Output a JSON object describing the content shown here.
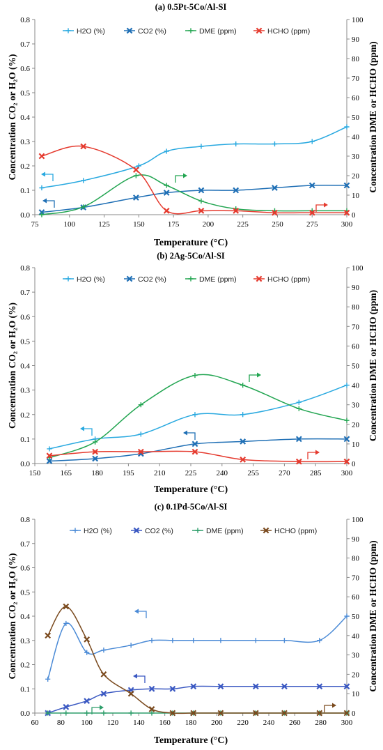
{
  "chart_data": [
    {
      "type": "line",
      "title": "(a) 0.5Pt-5Co/Al-SI",
      "xlabel": "Temperature (°C)",
      "ylabel_left": "Concentration CO₂ or H₂O (%)",
      "ylabel_right": "Concentration DME or HCHO (ppm)",
      "xlim": [
        75,
        300
      ],
      "xticks": [
        75,
        100,
        125,
        150,
        175,
        200,
        225,
        250,
        275,
        300
      ],
      "ylim_left": [
        0,
        0.8
      ],
      "yticks_left": [
        "0.0",
        "0.1",
        "0.2",
        "0.3",
        "0.4",
        "0.5",
        "0.6",
        "0.7",
        "0.8"
      ],
      "ylim_right": [
        0,
        100
      ],
      "yticks_right": [
        "0",
        "10",
        "20",
        "30",
        "40",
        "50",
        "60",
        "70",
        "80",
        "90",
        "100"
      ],
      "legend_position": "top",
      "series": [
        {
          "name": "H2O (%)",
          "axis": "left",
          "color": "#29a9e0",
          "marker": "plus",
          "x": [
            80,
            110,
            150,
            170,
            195,
            220,
            248,
            275,
            300
          ],
          "y": [
            0.11,
            0.14,
            0.2,
            0.26,
            0.28,
            0.29,
            0.29,
            0.3,
            0.36
          ]
        },
        {
          "name": "CO2 (%)",
          "axis": "left",
          "color": "#1f6fb5",
          "marker": "x",
          "x": [
            80,
            110,
            148,
            170,
            195,
            220,
            248,
            275,
            300
          ],
          "y": [
            0.01,
            0.03,
            0.07,
            0.09,
            0.1,
            0.1,
            0.11,
            0.12,
            0.12
          ]
        },
        {
          "name": "DME (ppm)",
          "axis": "right",
          "color": "#22a551",
          "marker": "plus",
          "x": [
            80,
            110,
            148,
            170,
            195,
            220,
            248,
            275,
            300
          ],
          "y": [
            0,
            4,
            20,
            15,
            7,
            3,
            2,
            2,
            2
          ]
        },
        {
          "name": "HCHO (ppm)",
          "axis": "right",
          "color": "#e53a2e",
          "marker": "x",
          "x": [
            80,
            110,
            148,
            170,
            195,
            220,
            248,
            275,
            300
          ],
          "y": [
            30,
            35,
            23,
            2,
            2,
            2,
            1,
            1,
            1
          ]
        }
      ]
    },
    {
      "type": "line",
      "title": "(b) 2Ag-5Co/Al-SI",
      "xlabel": "Temperature (°C)",
      "ylabel_left": "Concentration CO₂ or H₂O (%)",
      "ylabel_right": "Concentration DME or HCHO (ppm)",
      "xlim": [
        150,
        300
      ],
      "xticks": [
        150,
        165,
        180,
        195,
        210,
        225,
        240,
        255,
        270,
        285,
        300
      ],
      "ylim_left": [
        0,
        0.8
      ],
      "yticks_left": [
        "0.0",
        "0.1",
        "0.2",
        "0.3",
        "0.4",
        "0.5",
        "0.6",
        "0.7",
        "0.8"
      ],
      "ylim_right": [
        0,
        100
      ],
      "yticks_right": [
        "0",
        "10",
        "20",
        "30",
        "40",
        "50",
        "60",
        "70",
        "80",
        "90",
        "100"
      ],
      "legend_position": "top",
      "series": [
        {
          "name": "H2O (%)",
          "axis": "left",
          "color": "#29a9e0",
          "marker": "plus",
          "x": [
            157,
            179,
            201,
            227,
            250,
            277,
            300
          ],
          "y": [
            0.06,
            0.1,
            0.12,
            0.2,
            0.2,
            0.25,
            0.32
          ]
        },
        {
          "name": "CO2 (%)",
          "axis": "left",
          "color": "#1f6fb5",
          "marker": "x",
          "x": [
            157,
            179,
            201,
            227,
            250,
            277,
            300
          ],
          "y": [
            0.01,
            0.02,
            0.04,
            0.08,
            0.09,
            0.1,
            0.1
          ]
        },
        {
          "name": "DME (ppm)",
          "axis": "right",
          "color": "#22a551",
          "marker": "plus",
          "x": [
            157,
            179,
            201,
            227,
            250,
            277,
            300
          ],
          "y": [
            3,
            11,
            30,
            45,
            40,
            28,
            22
          ]
        },
        {
          "name": "HCHO (ppm)",
          "axis": "right",
          "color": "#e53a2e",
          "marker": "x",
          "x": [
            157,
            179,
            201,
            227,
            250,
            277,
            300
          ],
          "y": [
            4,
            6,
            6,
            6,
            2,
            1,
            1
          ]
        }
      ]
    },
    {
      "type": "line",
      "title": "(c) 0.1Pd-5Co/Al-SI",
      "xlabel": "Temperature (°C)",
      "ylabel_left": "Concentration CO₂ or H₂O (%)",
      "ylabel_right": "Concentration DME or HCHO (ppm)",
      "xlim": [
        60,
        300
      ],
      "xticks": [
        60,
        80,
        100,
        120,
        140,
        160,
        180,
        200,
        220,
        240,
        260,
        280,
        300
      ],
      "ylim_left": [
        0,
        0.8
      ],
      "yticks_left": [
        "0.0",
        "0.1",
        "0.2",
        "0.3",
        "0.4",
        "0.5",
        "0.6",
        "0.7",
        "0.8"
      ],
      "ylim_right": [
        0,
        100
      ],
      "yticks_right": [
        "0",
        "10",
        "20",
        "30",
        "40",
        "50",
        "60",
        "70",
        "80",
        "90",
        "100"
      ],
      "legend_position": "top",
      "series": [
        {
          "name": "H2O (%)",
          "axis": "left",
          "color": "#4a8ad6",
          "marker": "plus",
          "x": [
            70,
            84,
            100,
            113,
            134,
            150,
            166,
            182,
            203,
            230,
            252,
            279,
            300
          ],
          "y": [
            0.14,
            0.37,
            0.25,
            0.26,
            0.28,
            0.3,
            0.3,
            0.3,
            0.3,
            0.3,
            0.3,
            0.3,
            0.4
          ]
        },
        {
          "name": "CO2 (%)",
          "axis": "left",
          "color": "#3a58c2",
          "marker": "x",
          "x": [
            70,
            84,
            100,
            113,
            134,
            150,
            166,
            182,
            203,
            230,
            252,
            279,
            300
          ],
          "y": [
            0,
            0.025,
            0.05,
            0.08,
            0.095,
            0.1,
            0.1,
            0.11,
            0.11,
            0.11,
            0.11,
            0.11,
            0.11
          ]
        },
        {
          "name": "DME (ppm)",
          "axis": "right",
          "color": "#2e9e6b",
          "marker": "plus",
          "x": [
            70,
            84,
            100,
            113,
            134,
            150,
            166,
            182,
            203,
            230,
            252,
            279,
            300
          ],
          "y": [
            0,
            0,
            0,
            0,
            0,
            0,
            0,
            0,
            0,
            0,
            0,
            0,
            0
          ]
        },
        {
          "name": "HCHO (ppm)",
          "axis": "right",
          "color": "#7a4a1e",
          "marker": "x",
          "x": [
            70,
            84,
            100,
            113,
            134,
            150,
            166,
            182,
            203,
            230,
            252,
            279,
            300
          ],
          "y": [
            40,
            55,
            38,
            20,
            10,
            2,
            0,
            0,
            0,
            0,
            0,
            0,
            0
          ]
        }
      ]
    }
  ]
}
